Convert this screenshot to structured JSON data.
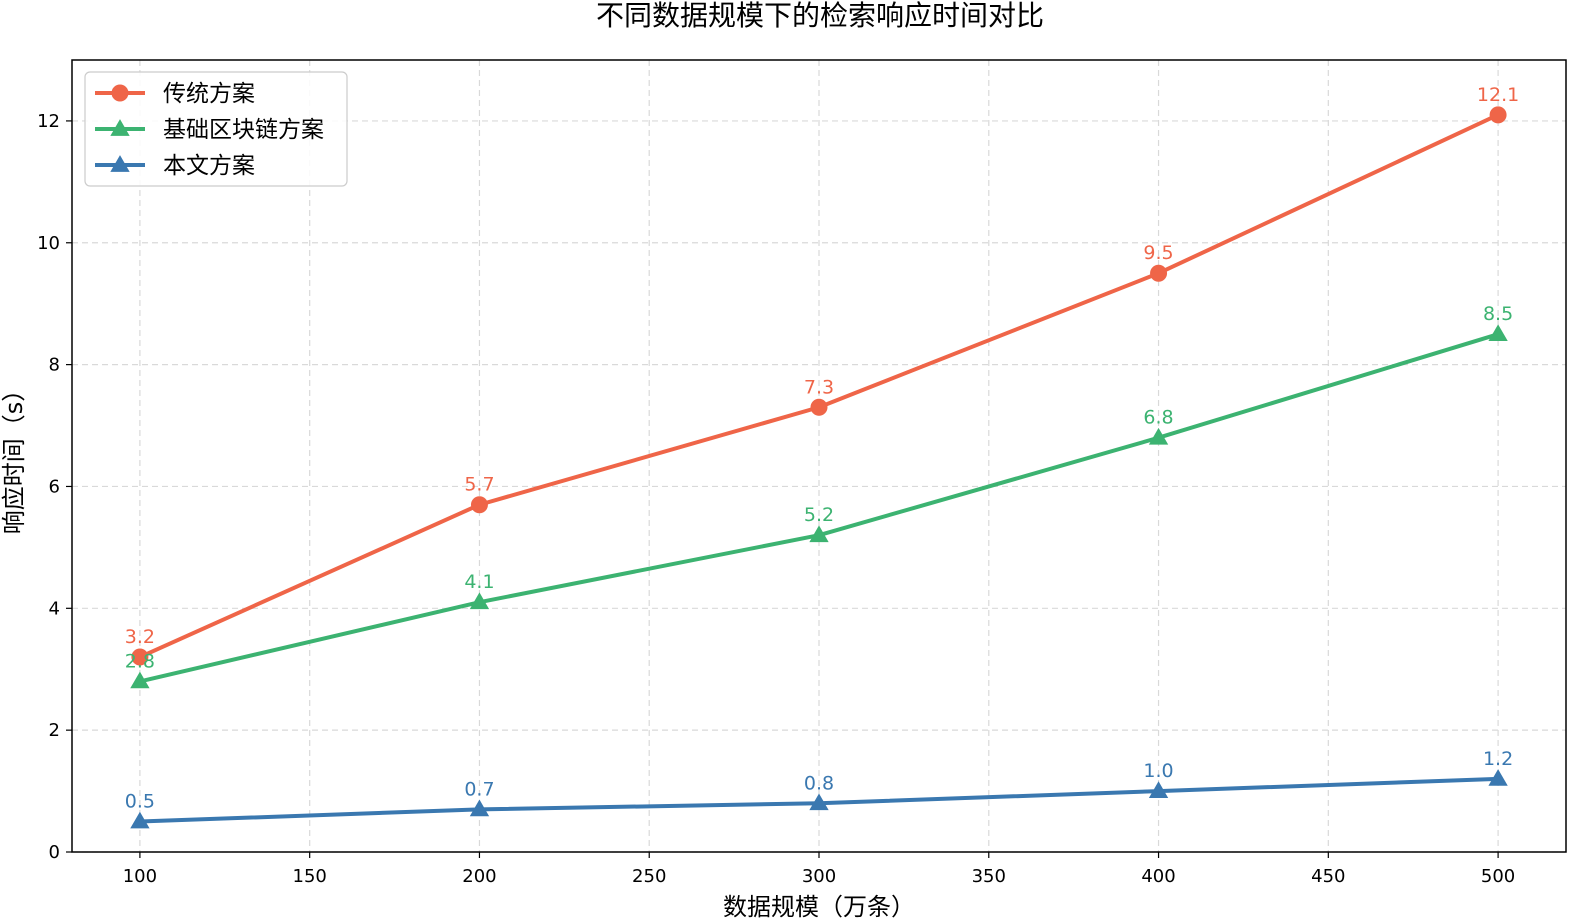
{
  "chart_data": {
    "type": "line",
    "title": "不同数据规模下的检索响应时间对比",
    "xlabel": "数据规模（万条）",
    "ylabel": "响应时间（s）",
    "x": [
      100,
      200,
      300,
      400,
      500
    ],
    "xlim": [
      80,
      520
    ],
    "ylim": [
      0,
      13
    ],
    "x_ticks": [
      100,
      150,
      200,
      250,
      300,
      350,
      400,
      450,
      500
    ],
    "y_ticks": [
      0,
      2,
      4,
      6,
      8,
      10,
      12
    ],
    "grid": true,
    "legend_position": "top-left",
    "series": [
      {
        "name": "传统方案",
        "color": "#ef6548",
        "marker": "circle",
        "values": [
          3.2,
          5.7,
          7.3,
          9.5,
          12.1
        ],
        "labels": [
          "3.2",
          "5.7",
          "7.3",
          "9.5",
          "12.1"
        ]
      },
      {
        "name": "基础区块链方案",
        "color": "#3cb371",
        "marker": "triangle",
        "values": [
          2.8,
          4.1,
          5.2,
          6.8,
          8.5
        ],
        "labels": [
          "2.8",
          "4.1",
          "5.2",
          "6.8",
          "8.5"
        ]
      },
      {
        "name": "本文方案",
        "color": "#3a78b0",
        "marker": "triangle",
        "values": [
          0.5,
          0.7,
          0.8,
          1.0,
          1.2
        ],
        "labels": [
          "0.5",
          "0.7",
          "0.8",
          "1.0",
          "1.2"
        ]
      }
    ]
  }
}
